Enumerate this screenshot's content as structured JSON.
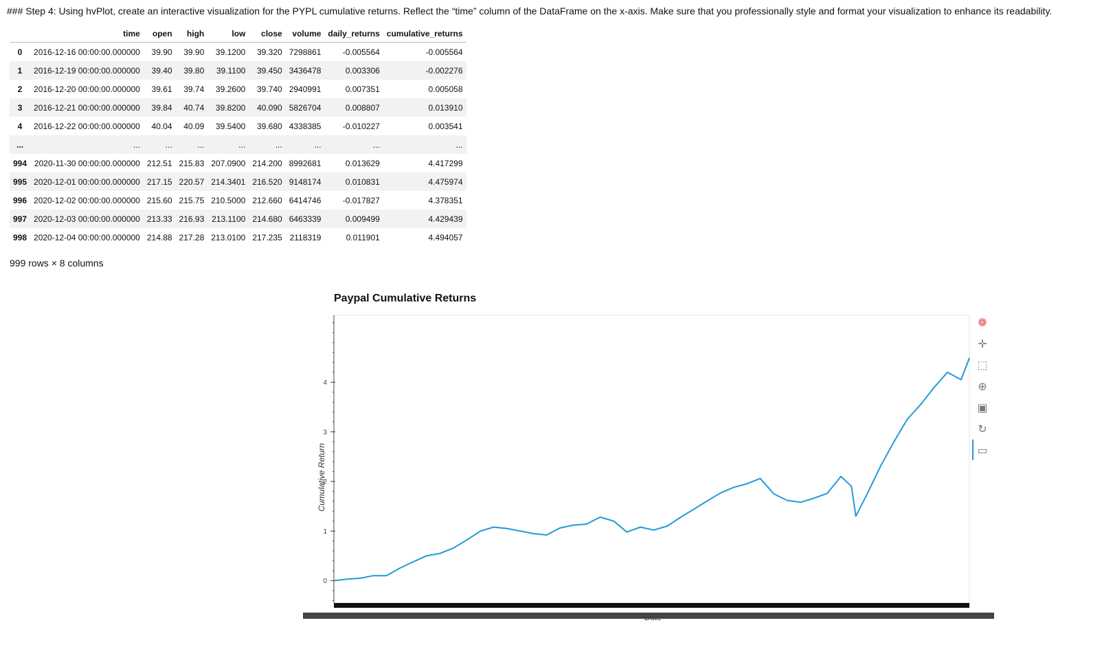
{
  "instruction": "### Step 4: Using hvPlot, create an interactive visualization for the PYPL cumulative returns. Reflect the “time” column of the DataFrame on the x-axis. Make sure that you professionally style and format your visualization to enhance its readability.",
  "table": {
    "columns": [
      "",
      "time",
      "open",
      "high",
      "low",
      "close",
      "volume",
      "daily_returns",
      "cumulative_returns"
    ],
    "rows": [
      [
        "0",
        "2016-12-16 00:00:00.000000",
        "39.90",
        "39.90",
        "39.1200",
        "39.320",
        "7298861",
        "-0.005564",
        "-0.005564"
      ],
      [
        "1",
        "2016-12-19 00:00:00.000000",
        "39.40",
        "39.80",
        "39.1100",
        "39.450",
        "3436478",
        "0.003306",
        "-0.002276"
      ],
      [
        "2",
        "2016-12-20 00:00:00.000000",
        "39.61",
        "39.74",
        "39.2600",
        "39.740",
        "2940991",
        "0.007351",
        "0.005058"
      ],
      [
        "3",
        "2016-12-21 00:00:00.000000",
        "39.84",
        "40.74",
        "39.8200",
        "40.090",
        "5826704",
        "0.008807",
        "0.013910"
      ],
      [
        "4",
        "2016-12-22 00:00:00.000000",
        "40.04",
        "40.09",
        "39.5400",
        "39.680",
        "4338385",
        "-0.010227",
        "0.003541"
      ],
      [
        "...",
        "...",
        "...",
        "...",
        "...",
        "...",
        "...",
        "...",
        "..."
      ],
      [
        "994",
        "2020-11-30 00:00:00.000000",
        "212.51",
        "215.83",
        "207.0900",
        "214.200",
        "8992681",
        "0.013629",
        "4.417299"
      ],
      [
        "995",
        "2020-12-01 00:00:00.000000",
        "217.15",
        "220.57",
        "214.3401",
        "216.520",
        "9148174",
        "0.010831",
        "4.475974"
      ],
      [
        "996",
        "2020-12-02 00:00:00.000000",
        "215.60",
        "215.75",
        "210.5000",
        "212.660",
        "6414746",
        "-0.017827",
        "4.378351"
      ],
      [
        "997",
        "2020-12-03 00:00:00.000000",
        "213.33",
        "216.93",
        "213.1100",
        "214.680",
        "6463339",
        "0.009499",
        "4.429439"
      ],
      [
        "998",
        "2020-12-04 00:00:00.000000",
        "214.88",
        "217.28",
        "213.0100",
        "217.235",
        "2118319",
        "0.011901",
        "4.494057"
      ]
    ]
  },
  "shape_text": "999 rows × 8 columns",
  "toolbar": {
    "items": [
      {
        "name": "bokeh-logo-icon",
        "glyph": "❁",
        "interactable": false
      },
      {
        "name": "pan-icon",
        "glyph": "✛",
        "interactable": true
      },
      {
        "name": "box-zoom-icon",
        "glyph": "⬚",
        "interactable": true
      },
      {
        "name": "wheel-zoom-icon",
        "glyph": "⊕",
        "interactable": true
      },
      {
        "name": "save-icon",
        "glyph": "▣",
        "interactable": true
      },
      {
        "name": "reset-icon",
        "glyph": "↻",
        "interactable": true
      },
      {
        "name": "hover-icon",
        "glyph": "▭",
        "interactable": true
      }
    ]
  },
  "chart_data": {
    "type": "line",
    "title": "Paypal Cumulative Returns",
    "xlabel": "Date",
    "ylabel": "Cumulative Return",
    "ylim": [
      -0.45,
      5.35
    ],
    "yticks": [
      0,
      1,
      2,
      3,
      4
    ],
    "grid": false,
    "series": [
      {
        "color": "#1f9ad6",
        "x": [
          "2016-12-16",
          "2017-01-15",
          "2017-02-15",
          "2017-03-15",
          "2017-04-15",
          "2017-05-15",
          "2017-06-15",
          "2017-07-15",
          "2017-08-15",
          "2017-09-15",
          "2017-10-15",
          "2017-11-15",
          "2017-12-15",
          "2018-01-15",
          "2018-02-15",
          "2018-03-15",
          "2018-04-15",
          "2018-05-15",
          "2018-06-15",
          "2018-07-15",
          "2018-08-15",
          "2018-09-15",
          "2018-10-15",
          "2018-11-15",
          "2018-12-15",
          "2019-01-15",
          "2019-02-15",
          "2019-03-15",
          "2019-04-15",
          "2019-05-15",
          "2019-06-15",
          "2019-07-15",
          "2019-08-15",
          "2019-09-15",
          "2019-10-15",
          "2019-11-15",
          "2019-12-15",
          "2020-01-15",
          "2020-02-15",
          "2020-03-10",
          "2020-03-20",
          "2020-04-15",
          "2020-05-15",
          "2020-06-15",
          "2020-07-15",
          "2020-08-15",
          "2020-09-15",
          "2020-10-15",
          "2020-11-15",
          "2020-12-04"
        ],
        "y": [
          0.0,
          0.03,
          0.05,
          0.1,
          0.1,
          0.25,
          0.38,
          0.5,
          0.55,
          0.66,
          0.82,
          1.0,
          1.08,
          1.05,
          1.0,
          0.95,
          0.92,
          1.06,
          1.12,
          1.14,
          1.28,
          1.2,
          0.98,
          1.08,
          1.02,
          1.1,
          1.28,
          1.43,
          1.6,
          1.76,
          1.88,
          1.95,
          2.06,
          1.75,
          1.62,
          1.58,
          1.66,
          1.76,
          2.1,
          1.9,
          1.3,
          1.75,
          2.3,
          2.8,
          3.25,
          3.55,
          3.9,
          4.2,
          4.05,
          4.49
        ]
      }
    ]
  }
}
